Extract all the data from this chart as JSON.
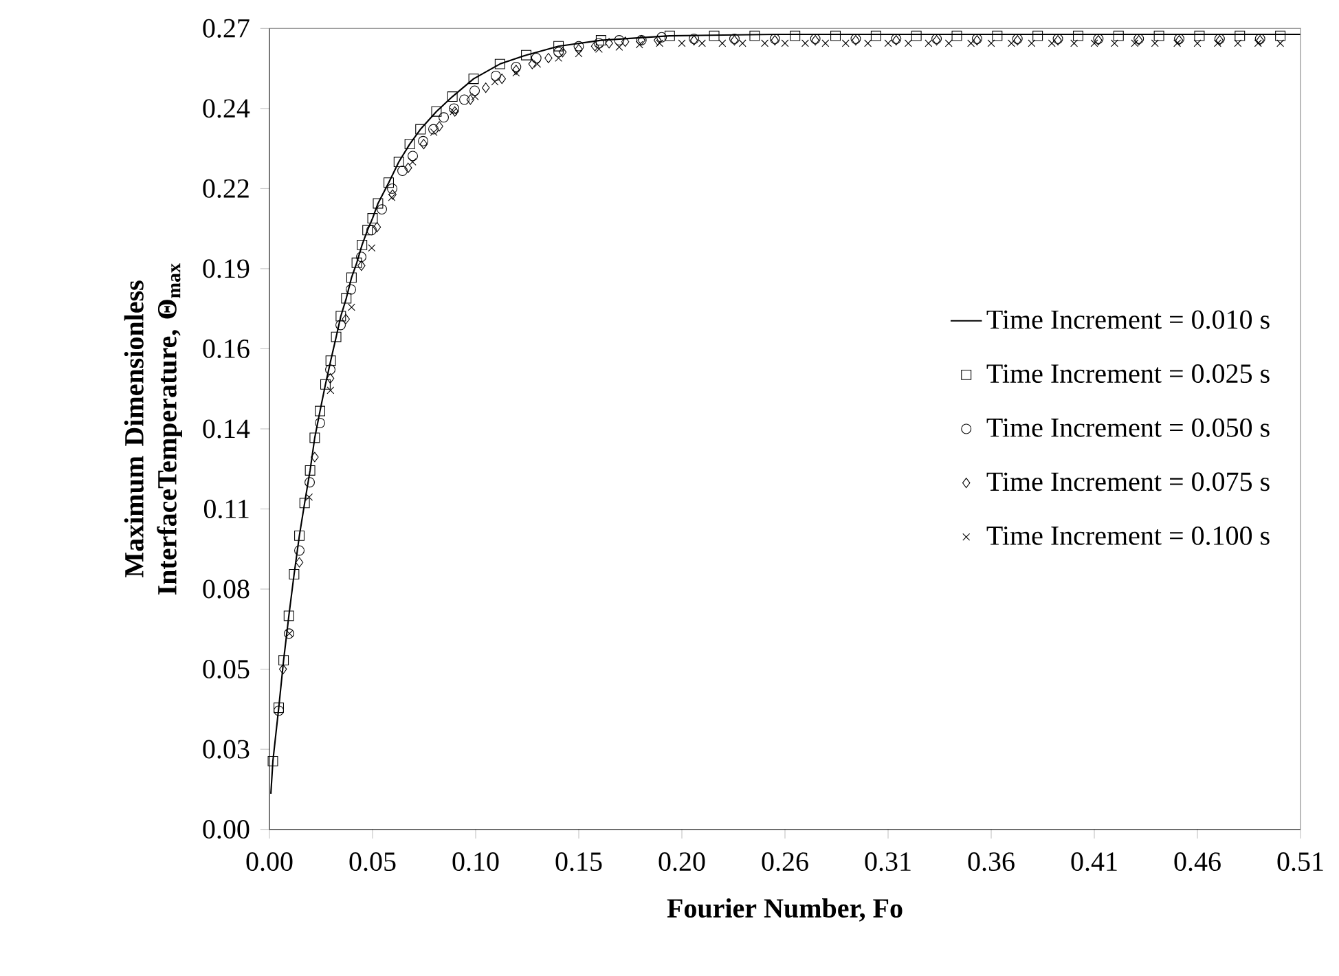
{
  "chart_data": {
    "type": "scatter",
    "xlabel": "Fourier Number, Fo",
    "ylabel": "Maximum Dimensionless InterfaceTemperature, **Θ$_{max}$**",
    "xlim": [
      0,
      0.51
    ],
    "ylim": [
      0,
      0.27
    ],
    "xticks": [
      {
        "value": 0,
        "label": "0.00"
      },
      {
        "value": 0.051,
        "label": "0.05"
      },
      {
        "value": 0.102,
        "label": "0.10"
      },
      {
        "value": 0.153,
        "label": "0.15"
      },
      {
        "value": 0.204,
        "label": "0.20"
      },
      {
        "value": 0.255,
        "label": "0.26"
      },
      {
        "value": 0.306,
        "label": "0.31"
      },
      {
        "value": 0.357,
        "label": "0.36"
      },
      {
        "value": 0.408,
        "label": "0.41"
      },
      {
        "value": 0.459,
        "label": "0.46"
      },
      {
        "value": 0.51,
        "label": "0.51"
      }
    ],
    "yticks": [
      {
        "value": 0,
        "label": "0.00"
      },
      {
        "value": 0.027,
        "label": "0.03"
      },
      {
        "value": 0.054,
        "label": "0.05"
      },
      {
        "value": 0.081,
        "label": "0.08"
      },
      {
        "value": 0.108,
        "label": "0.11"
      },
      {
        "value": 0.135,
        "label": "0.14"
      },
      {
        "value": 0.162,
        "label": "0.16"
      },
      {
        "value": 0.189,
        "label": "0.19"
      },
      {
        "value": 0.216,
        "label": "0.22"
      },
      {
        "value": 0.243,
        "label": "0.24"
      },
      {
        "value": 0.27,
        "label": "0.27"
      }
    ],
    "grid": false,
    "legend": "right",
    "series": [
      {
        "name": "Time Increment = 0.010 s",
        "type": "line",
        "marker": "none",
        "line_style": "solid",
        "color": "#000000",
        "x": [
          0.0007,
          0.0017,
          0.0046,
          0.007,
          0.0096,
          0.0122,
          0.0148,
          0.0174,
          0.0201,
          0.0224,
          0.025,
          0.0277,
          0.0303,
          0.033,
          0.0353,
          0.038,
          0.0406,
          0.0432,
          0.0458,
          0.0485,
          0.051,
          0.0537,
          0.059,
          0.064,
          0.0694,
          0.0747,
          0.0826,
          0.0905,
          0.101,
          0.114,
          0.127,
          0.143,
          0.164,
          0.198,
          0.25,
          0.3,
          0.4,
          0.51
        ],
        "values": [
          0.012,
          0.023,
          0.041,
          0.057,
          0.072,
          0.086,
          0.099,
          0.11,
          0.121,
          0.132,
          0.141,
          0.15,
          0.158,
          0.166,
          0.173,
          0.179,
          0.186,
          0.191,
          0.197,
          0.202,
          0.206,
          0.211,
          0.218,
          0.225,
          0.231,
          0.236,
          0.242,
          0.247,
          0.253,
          0.258,
          0.261,
          0.264,
          0.266,
          0.2675,
          0.268,
          0.268,
          0.268,
          0.268
        ]
      },
      {
        "name": "Time Increment = 0.025 s",
        "marker": "square",
        "color": "#000000",
        "x": [
          0.0017,
          0.0046,
          0.007,
          0.0096,
          0.0122,
          0.0148,
          0.0174,
          0.0201,
          0.0224,
          0.025,
          0.0277,
          0.0303,
          0.033,
          0.0353,
          0.038,
          0.0406,
          0.0432,
          0.0458,
          0.0485,
          0.051,
          0.0537,
          0.059,
          0.064,
          0.0694,
          0.0747,
          0.0826,
          0.0905,
          0.101,
          0.114,
          0.127,
          0.143,
          0.164,
          0.198,
          0.22,
          0.24,
          0.26,
          0.28,
          0.3,
          0.32,
          0.34,
          0.36,
          0.38,
          0.4,
          0.42,
          0.44,
          0.46,
          0.48,
          0.5
        ],
        "values": [
          0.023,
          0.041,
          0.057,
          0.072,
          0.086,
          0.099,
          0.11,
          0.121,
          0.132,
          0.141,
          0.15,
          0.158,
          0.166,
          0.173,
          0.179,
          0.186,
          0.191,
          0.197,
          0.202,
          0.206,
          0.211,
          0.218,
          0.225,
          0.231,
          0.236,
          0.242,
          0.247,
          0.253,
          0.258,
          0.261,
          0.264,
          0.266,
          0.2675,
          0.2675,
          0.2675,
          0.2675,
          0.2675,
          0.2675,
          0.2675,
          0.2675,
          0.2675,
          0.2675,
          0.2675,
          0.2675,
          0.2675,
          0.2675,
          0.2675,
          0.2675
        ]
      },
      {
        "name": "Time Increment = 0.050 s",
        "marker": "circle",
        "color": "#000000",
        "x": [
          0.0046,
          0.0097,
          0.0148,
          0.0199,
          0.025,
          0.0301,
          0.0352,
          0.0403,
          0.0454,
          0.0505,
          0.0556,
          0.0607,
          0.0658,
          0.0709,
          0.076,
          0.0811,
          0.0862,
          0.0913,
          0.0964,
          0.1015,
          0.112,
          0.122,
          0.132,
          0.143,
          0.153,
          0.163,
          0.173,
          0.184,
          0.194,
          0.21,
          0.23,
          0.25,
          0.27,
          0.29,
          0.31,
          0.33,
          0.35,
          0.37,
          0.39,
          0.41,
          0.43,
          0.45,
          0.47,
          0.49
        ],
        "values": [
          0.04,
          0.066,
          0.094,
          0.117,
          0.137,
          0.155,
          0.17,
          0.182,
          0.193,
          0.202,
          0.209,
          0.216,
          0.222,
          0.227,
          0.232,
          0.236,
          0.24,
          0.243,
          0.246,
          0.249,
          0.254,
          0.257,
          0.26,
          0.262,
          0.264,
          0.265,
          0.266,
          0.266,
          0.267,
          0.2665,
          0.2665,
          0.2665,
          0.2665,
          0.2665,
          0.2665,
          0.2665,
          0.2665,
          0.2665,
          0.2665,
          0.2665,
          0.2665,
          0.2665,
          0.2665,
          0.2665
        ]
      },
      {
        "name": "Time Increment = 0.075 s",
        "marker": "diamond",
        "color": "#000000",
        "x": [
          0.0067,
          0.0148,
          0.0224,
          0.0301,
          0.0378,
          0.0455,
          0.0532,
          0.0609,
          0.0686,
          0.0763,
          0.084,
          0.0917,
          0.0994,
          0.107,
          0.115,
          0.122,
          0.13,
          0.138,
          0.145,
          0.153,
          0.161,
          0.168,
          0.176,
          0.184,
          0.192,
          0.21,
          0.23,
          0.25,
          0.27,
          0.29,
          0.31,
          0.33,
          0.35,
          0.37,
          0.39,
          0.41,
          0.43,
          0.45,
          0.47,
          0.49
        ],
        "values": [
          0.054,
          0.09,
          0.1255,
          0.152,
          0.172,
          0.19,
          0.203,
          0.214,
          0.223,
          0.231,
          0.237,
          0.242,
          0.246,
          0.25,
          0.253,
          0.256,
          0.258,
          0.26,
          0.262,
          0.263,
          0.264,
          0.265,
          0.2655,
          0.266,
          0.266,
          0.266,
          0.266,
          0.266,
          0.266,
          0.266,
          0.266,
          0.266,
          0.266,
          0.266,
          0.266,
          0.266,
          0.266,
          0.266,
          0.266,
          0.266
        ]
      },
      {
        "name": "Time Increment = 0.100 s",
        "marker": "cross",
        "color": "#000000",
        "x": [
          0.0099,
          0.0196,
          0.0302,
          0.0406,
          0.0506,
          0.0605,
          0.0708,
          0.0813,
          0.091,
          0.1017,
          0.1115,
          0.122,
          0.1325,
          0.143,
          0.153,
          0.163,
          0.173,
          0.183,
          0.193,
          0.204,
          0.214,
          0.224,
          0.234,
          0.245,
          0.255,
          0.265,
          0.275,
          0.285,
          0.296,
          0.306,
          0.316,
          0.326,
          0.336,
          0.347,
          0.357,
          0.367,
          0.377,
          0.387,
          0.398,
          0.408,
          0.418,
          0.428,
          0.438,
          0.449,
          0.459,
          0.469,
          0.479,
          0.489,
          0.5
        ],
        "values": [
          0.066,
          0.112,
          0.148,
          0.176,
          0.196,
          0.213,
          0.225,
          0.235,
          0.242,
          0.247,
          0.252,
          0.255,
          0.258,
          0.26,
          0.2615,
          0.263,
          0.2637,
          0.2645,
          0.265,
          0.265,
          0.265,
          0.265,
          0.265,
          0.265,
          0.265,
          0.265,
          0.265,
          0.265,
          0.265,
          0.265,
          0.265,
          0.265,
          0.265,
          0.265,
          0.265,
          0.265,
          0.265,
          0.265,
          0.265,
          0.265,
          0.265,
          0.265,
          0.265,
          0.265,
          0.265,
          0.265,
          0.265,
          0.265,
          0.265
        ]
      }
    ]
  }
}
